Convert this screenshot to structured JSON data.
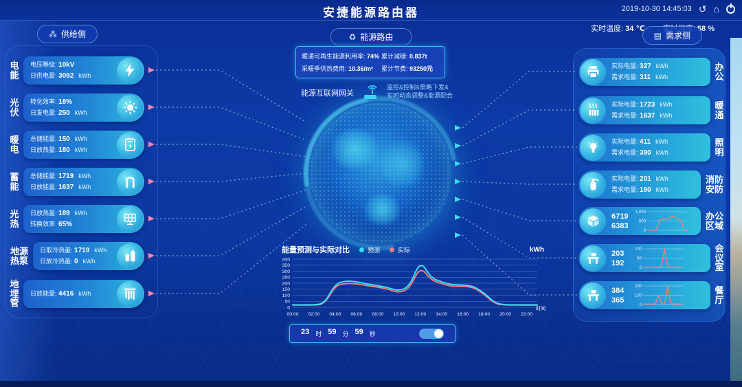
{
  "header": {
    "title": "安捷能源路由器",
    "datetime": "2019-10-30 14:45:03",
    "temperature_label": "实时温度:",
    "temperature_value": "34 ℃",
    "humidity_label": "实时湿度:",
    "humidity_value": "58 %",
    "icons": {
      "undo": "↺",
      "home": "⌂",
      "power": "power-icon"
    }
  },
  "supply": {
    "button_label": "供给侧",
    "items": [
      {
        "name": "电能",
        "icon": "bolt-icon",
        "lines": [
          {
            "label": "电压等级:",
            "value": "10kV",
            "unit": ""
          },
          {
            "label": "日供电量:",
            "value": "3092",
            "unit": "kWh"
          }
        ]
      },
      {
        "name": "光伏",
        "icon": "sun-icon",
        "lines": [
          {
            "label": "转化效率:",
            "value": "18%",
            "unit": ""
          },
          {
            "label": "日发电量:",
            "value": "250",
            "unit": "kWh"
          }
        ]
      },
      {
        "name": "暖电",
        "icon": "meter-icon",
        "lines": [
          {
            "label": "总储能量:",
            "value": "150",
            "unit": "kWh"
          },
          {
            "label": "日放热量:",
            "value": "180",
            "unit": "kWh"
          }
        ]
      },
      {
        "name": "蓄能",
        "icon": "pipe-icon",
        "lines": [
          {
            "label": "总储能量:",
            "value": "1719",
            "unit": "kWh"
          },
          {
            "label": "日放能量:",
            "value": "1637",
            "unit": "kWh"
          }
        ]
      },
      {
        "name": "光热",
        "icon": "solar-panel-icon",
        "lines": [
          {
            "label": "日放热量:",
            "value": "189",
            "unit": "kWh"
          },
          {
            "label": "转换效率:",
            "value": "65%",
            "unit": ""
          }
        ]
      },
      {
        "name": "地源热泵",
        "icon": "tanks-icon",
        "lines": [
          {
            "label": "日取冷热量:",
            "value": "1719",
            "unit": "kWh"
          },
          {
            "label": "日放冷热量:",
            "value": "0",
            "unit": "kWh"
          }
        ]
      },
      {
        "name": "地埋管",
        "icon": "pipes-icon",
        "lines": [
          {
            "label": "日放能量:",
            "value": "4416",
            "unit": "kWh"
          }
        ]
      }
    ]
  },
  "center": {
    "route_button": "能源路由",
    "route_icon": "♻",
    "stats": [
      {
        "label": "暖通可再生能源利用率:",
        "value": "74%"
      },
      {
        "label": "累计减碳:",
        "value": "0.837t"
      },
      {
        "label": "采暖季供热费用:",
        "value": "10.36/m²"
      },
      {
        "label": "累计节费:",
        "value": "93250元"
      }
    ],
    "gateway_label": "能源互联网网关",
    "gateway_desc_line1": "监控&控制&策略下发&",
    "gateway_desc_line2": "实时动态调整&能源配合"
  },
  "demand": {
    "button_label": "需求侧",
    "items": [
      {
        "name": "办公",
        "icon": "printer-icon",
        "lines": [
          {
            "label": "实际电量:",
            "value": "327",
            "unit": "kWh"
          },
          {
            "label": "需求电量:",
            "value": "311",
            "unit": "kWh"
          }
        ]
      },
      {
        "name": "暖通",
        "icon": "radiator-icon",
        "lines": [
          {
            "label": "实际电量:",
            "value": "1723",
            "unit": "kWh"
          },
          {
            "label": "需求电量:",
            "value": "1637",
            "unit": "kWh"
          }
        ]
      },
      {
        "name": "照明",
        "icon": "bulb-icon",
        "lines": [
          {
            "label": "实际电量:",
            "value": "411",
            "unit": "kWh"
          },
          {
            "label": "需求电量:",
            "value": "390",
            "unit": "kWh"
          }
        ]
      },
      {
        "name": "消防安防",
        "icon": "extinguisher-icon",
        "lines": [
          {
            "label": "实际电量:",
            "value": "201",
            "unit": "kWh"
          },
          {
            "label": "需求电量:",
            "value": "190",
            "unit": "kWh"
          }
        ]
      },
      {
        "name": "办公区域",
        "icon": "building-icon",
        "values": [
          "6719",
          "6383"
        ],
        "mini": {
          "y_ticks": [
            "1,000",
            "500",
            "0"
          ],
          "ylim": [
            0,
            1000
          ],
          "data": [
            10,
            10,
            10,
            10,
            550,
            600,
            580,
            630,
            750,
            720,
            600,
            570,
            10,
            10
          ]
        }
      },
      {
        "name": "会议室",
        "icon": "desk-icon",
        "values": [
          "203",
          "192"
        ],
        "mini": {
          "y_ticks": [
            "100",
            "50",
            "0"
          ],
          "ylim": [
            0,
            100
          ],
          "data": [
            2,
            2,
            2,
            2,
            2,
            2,
            8,
            98,
            10,
            2,
            2,
            2,
            2,
            2
          ]
        }
      },
      {
        "name": "餐厅",
        "icon": "desk-icon",
        "values": [
          "384",
          "365"
        ],
        "mini": {
          "y_ticks": [
            "200",
            "100",
            "0"
          ],
          "ylim": [
            0,
            200
          ],
          "data": [
            5,
            5,
            5,
            5,
            5,
            100,
            12,
            5,
            195,
            15,
            5,
            5,
            5,
            5
          ]
        }
      }
    ]
  },
  "chart_data": {
    "type": "line",
    "title": "能量预测与实际对比",
    "unit_label": "kWh",
    "xlabel": "时间",
    "x_ticks": [
      "00:00",
      "02:00",
      "04:00",
      "06:00",
      "08:00",
      "10:00",
      "12:00",
      "14:00",
      "16:00",
      "18:00",
      "20:00",
      "22:00"
    ],
    "ylim": [
      0,
      400
    ],
    "y_ticks": [
      0,
      50,
      100,
      150,
      200,
      250,
      300,
      350,
      400
    ],
    "grid": true,
    "legend_position": "top",
    "x_hours": [
      0,
      1,
      2,
      3,
      4,
      5,
      6,
      7,
      8,
      9,
      10,
      11,
      12,
      13,
      14,
      15,
      16,
      17,
      18,
      19,
      20,
      21,
      22,
      23
    ],
    "series": [
      {
        "name": "预测",
        "color": "#3ddcf5",
        "values": [
          20,
          20,
          20,
          32,
          195,
          220,
          213,
          193,
          180,
          163,
          135,
          175,
          390,
          245,
          210,
          186,
          186,
          175,
          120,
          35,
          20,
          20,
          20,
          20
        ]
      },
      {
        "name": "实际",
        "color": "#ef8080",
        "values": [
          18,
          18,
          18,
          27,
          180,
          200,
          196,
          179,
          168,
          150,
          120,
          157,
          340,
          227,
          197,
          172,
          175,
          167,
          108,
          30,
          18,
          18,
          18,
          18
        ]
      }
    ]
  },
  "timer": {
    "hours": "23",
    "hours_unit": "时",
    "minutes": "59",
    "minutes_unit": "分",
    "seconds": "59",
    "seconds_unit": "秒",
    "toggle_on": true
  },
  "colors": {
    "accent_cyan": "#3ac8f2",
    "forecast": "#3ddcf5",
    "actual": "#ef8080",
    "supply_arrow": "#ff85a8",
    "demand_arrow": "#45e0ee"
  }
}
